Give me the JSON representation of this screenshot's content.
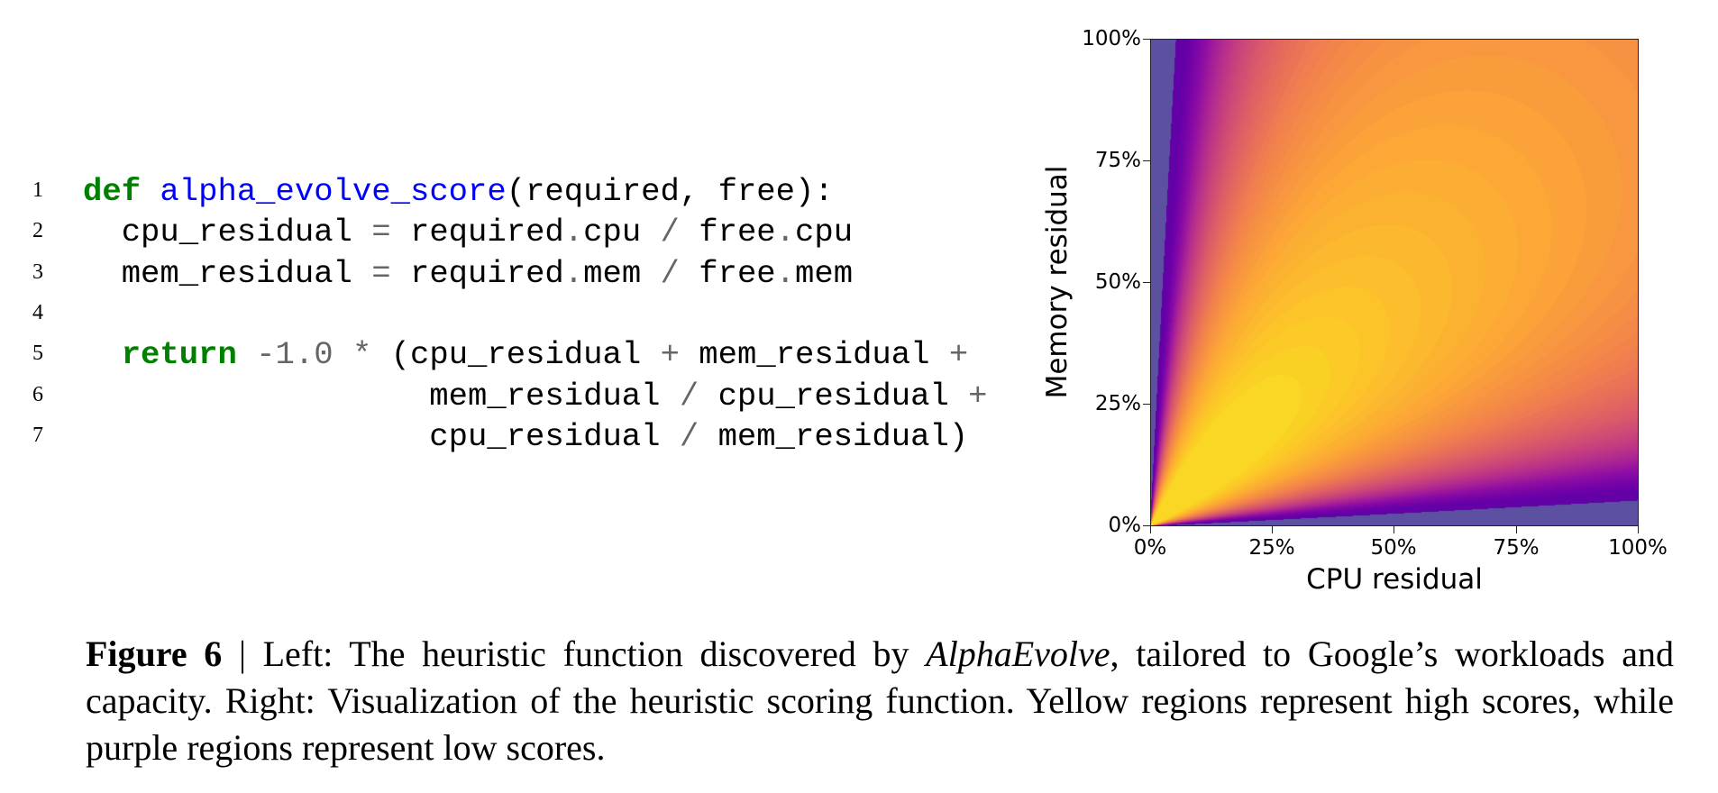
{
  "code": {
    "lines": [
      {
        "no": "1",
        "tokens": [
          {
            "t": "def",
            "c": "kw"
          },
          {
            "t": " ",
            "c": ""
          },
          {
            "t": "alpha_evolve_score",
            "c": "fn"
          },
          {
            "t": "(required, free):",
            "c": ""
          }
        ]
      },
      {
        "no": "2",
        "tokens": [
          {
            "t": "  cpu_residual ",
            "c": ""
          },
          {
            "t": "=",
            "c": "op"
          },
          {
            "t": " required",
            "c": ""
          },
          {
            "t": ".",
            "c": "op"
          },
          {
            "t": "cpu ",
            "c": ""
          },
          {
            "t": "/",
            "c": "op"
          },
          {
            "t": " free",
            "c": ""
          },
          {
            "t": ".",
            "c": "op"
          },
          {
            "t": "cpu",
            "c": ""
          }
        ]
      },
      {
        "no": "3",
        "tokens": [
          {
            "t": "  mem_residual ",
            "c": ""
          },
          {
            "t": "=",
            "c": "op"
          },
          {
            "t": " required",
            "c": ""
          },
          {
            "t": ".",
            "c": "op"
          },
          {
            "t": "mem ",
            "c": ""
          },
          {
            "t": "/",
            "c": "op"
          },
          {
            "t": " free",
            "c": ""
          },
          {
            "t": ".",
            "c": "op"
          },
          {
            "t": "mem",
            "c": ""
          }
        ]
      },
      {
        "no": "4",
        "tokens": []
      },
      {
        "no": "5",
        "tokens": [
          {
            "t": "  ",
            "c": ""
          },
          {
            "t": "return",
            "c": "kw"
          },
          {
            "t": " ",
            "c": ""
          },
          {
            "t": "-1.0",
            "c": "num"
          },
          {
            "t": " ",
            "c": ""
          },
          {
            "t": "*",
            "c": "op"
          },
          {
            "t": " (cpu_residual ",
            "c": ""
          },
          {
            "t": "+",
            "c": "op"
          },
          {
            "t": " mem_residual ",
            "c": ""
          },
          {
            "t": "+",
            "c": "op"
          }
        ]
      },
      {
        "no": "6",
        "tokens": [
          {
            "t": "                  mem_residual ",
            "c": ""
          },
          {
            "t": "/",
            "c": "op"
          },
          {
            "t": " cpu_residual ",
            "c": ""
          },
          {
            "t": "+",
            "c": "op"
          }
        ]
      },
      {
        "no": "7",
        "tokens": [
          {
            "t": "                  cpu_residual ",
            "c": ""
          },
          {
            "t": "/",
            "c": "op"
          },
          {
            "t": " mem_residual)",
            "c": ""
          }
        ]
      }
    ]
  },
  "chart_data": {
    "type": "heatmap",
    "subtype": "filled-contour",
    "title": "",
    "xlabel": "CPU residual",
    "ylabel": "Memory residual",
    "xlim": [
      0,
      1
    ],
    "ylim": [
      0,
      1
    ],
    "xticks": [
      0,
      0.25,
      0.5,
      0.75,
      1.0
    ],
    "yticks": [
      0,
      0.25,
      0.5,
      0.75,
      1.0
    ],
    "xtick_labels": [
      "0%",
      "25%",
      "50%",
      "75%",
      "100%"
    ],
    "ytick_labels": [
      "0%",
      "25%",
      "50%",
      "75%",
      "100%"
    ],
    "function": "score = -1.0 * (cpu_residual + mem_residual + mem_residual / cpu_residual + cpu_residual / mem_residual)",
    "colormap": "plasma",
    "score_range_shown": [
      -20,
      -2.6
    ],
    "num_levels": 50,
    "max_region": {
      "description": "yellow ellipse-like region along diagonal",
      "approx_center": [
        0.3,
        0.3
      ],
      "approx_extent_x": [
        0,
        0.5
      ],
      "approx_extent_y": [
        0,
        0.53
      ]
    },
    "low_regions": [
      "near x=0 (left edge, x < ~6%)",
      "near y=0 (bottom edge, y < ~5%)"
    ],
    "grid": false,
    "legend": null,
    "colors": {
      "low": "#5c51a1",
      "high": "#fcc325",
      "mid_orange": "#fab033"
    }
  },
  "caption": {
    "label": "Figure 6",
    "separator": " | ",
    "text_before_italic": "Left: The heuristic function discovered by ",
    "italic": "AlphaEvolve",
    "text_after_italic": ", tailored to Google’s workloads and capacity. Right: Visualization of the heuristic scoring function. Yellow regions represent high scores, while purple regions represent low scores."
  }
}
